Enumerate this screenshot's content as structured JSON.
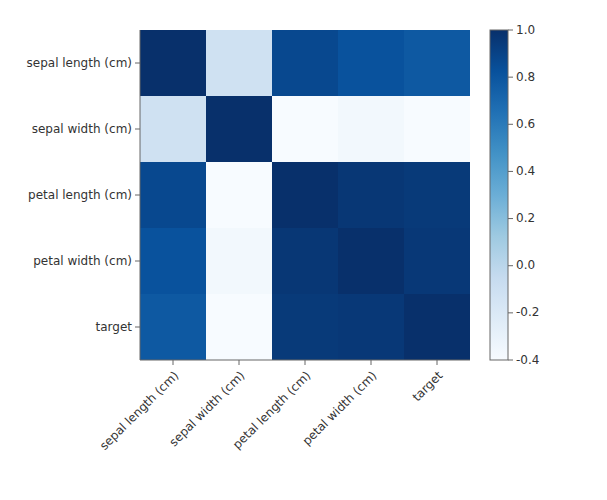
{
  "chart_data": {
    "type": "heatmap",
    "categories": [
      "sepal length (cm)",
      "sepal width (cm)",
      "petal length (cm)",
      "petal width (cm)",
      "target"
    ],
    "cells": [
      [
        1.0,
        -0.1176,
        0.8718,
        0.8179,
        0.7826
      ],
      [
        -0.1176,
        1.0,
        -0.4284,
        -0.3661,
        -0.4194
      ],
      [
        0.8718,
        -0.4284,
        1.0,
        0.9629,
        0.949
      ],
      [
        0.8179,
        -0.3661,
        0.9629,
        1.0,
        0.9565
      ],
      [
        0.7826,
        -0.4194,
        0.949,
        0.9565,
        1.0
      ]
    ],
    "color": "Blues",
    "color_range": [
      -0.4,
      1.0
    ],
    "color_ticks": [
      -0.4,
      -0.2,
      {
        "value": 0.0,
        "label": "0.0"
      },
      0.2,
      0.4,
      0.6,
      0.8,
      {
        "value": 1.0,
        "label": "1.0"
      }
    ]
  }
}
